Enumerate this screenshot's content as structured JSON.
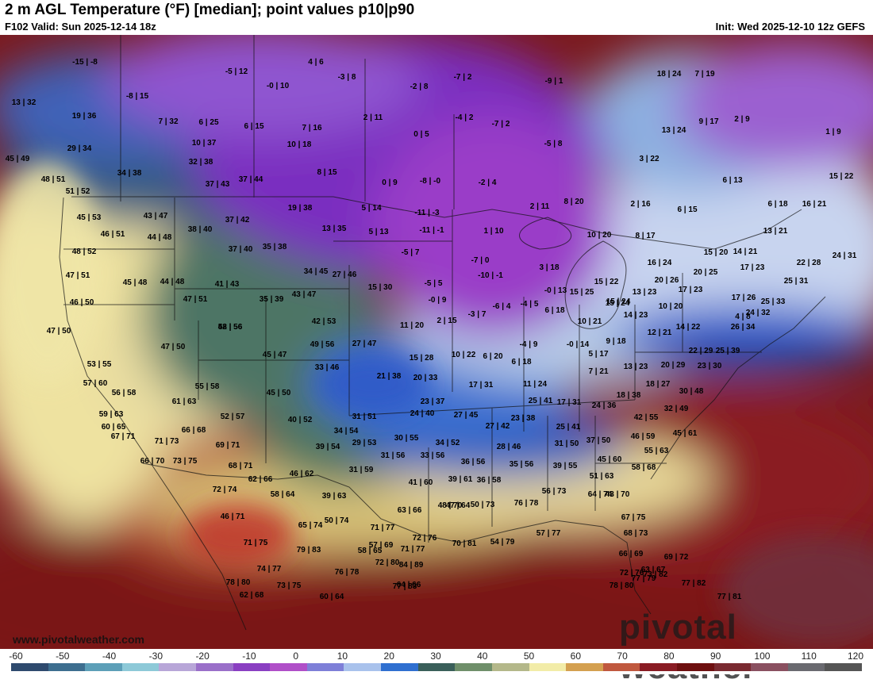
{
  "header": {
    "title": "2 m AGL Temperature (°F) [median]; point values p10|p90",
    "valid": "F102 Valid: Sun 2025-12-14 18z",
    "init": "Init: Wed 2025-12-10 12z GEFS"
  },
  "watermark": {
    "url": "www.pivotalweather.com",
    "logo": "pivotal weather"
  },
  "colorbar": {
    "ticks": [
      "-60",
      "-50",
      "-40",
      "-30",
      "-20",
      "-10",
      "0",
      "10",
      "20",
      "30",
      "40",
      "50",
      "60",
      "70",
      "80",
      "90",
      "100",
      "110",
      "120"
    ],
    "colors": [
      "#2e4a6e",
      "#3d6e8f",
      "#5c9fb8",
      "#8dc9d8",
      "#b8a6d8",
      "#9a6fc9",
      "#8a3fc2",
      "#b04fc8",
      "#7e7fd8",
      "#a9c2ec",
      "#2f6fd0",
      "#3a5f5a",
      "#6f8f6a",
      "#b4b88a",
      "#f2eca8",
      "#d4a050",
      "#c0583e",
      "#8a1c24",
      "#6e1010",
      "#7a2a30",
      "#8a5060",
      "#6a6a70",
      "#555"
    ]
  },
  "points": [
    {
      "v": "-15 | -8",
      "t": "p"
    },
    {
      "v": "-5 | 12",
      "t": "p"
    },
    {
      "v": "4 | 6",
      "t": "p"
    },
    {
      "v": "-3 | 8",
      "t": "p"
    },
    {
      "v": "-0 | 10",
      "t": "p"
    },
    {
      "v": "13 | 32",
      "t": "c"
    },
    {
      "v": "-8 | 15",
      "t": "p"
    },
    {
      "v": "-2 | 8",
      "t": "p"
    },
    {
      "v": "-7 | 2",
      "t": "p"
    },
    {
      "v": "-9 | 1",
      "t": "p"
    },
    {
      "v": "18 | 24",
      "t": "c"
    },
    {
      "v": "7 | 19",
      "t": "c"
    },
    {
      "v": "19 | 36",
      "t": "c"
    },
    {
      "v": "7 | 32",
      "t": "c"
    },
    {
      "v": "6 | 25",
      "t": "c"
    },
    {
      "v": "6 | 15",
      "t": "c"
    },
    {
      "v": "7 | 16",
      "t": "c"
    },
    {
      "v": "2 | 11",
      "t": "p"
    },
    {
      "v": "-4 | 2",
      "t": "p"
    },
    {
      "v": "-7 | 2",
      "t": "p"
    },
    {
      "v": "9 | 17",
      "t": "c"
    },
    {
      "v": "2 | 9",
      "t": "c"
    },
    {
      "v": "13 | 24",
      "t": "c"
    },
    {
      "v": "0 | 5",
      "t": "p"
    },
    {
      "v": "-5 | 8",
      "t": "p"
    },
    {
      "v": "10 | 37",
      "t": "c"
    },
    {
      "v": "10 | 18",
      "t": "c"
    },
    {
      "v": "29 | 34",
      "t": "g"
    },
    {
      "v": "1 | 9",
      "t": "c"
    },
    {
      "v": "45 | 49",
      "t": "y"
    },
    {
      "v": "32 | 38",
      "t": "g"
    },
    {
      "v": "3 | 22",
      "t": "c"
    },
    {
      "v": "34 | 38",
      "t": "g"
    },
    {
      "v": "8 | 15",
      "t": "c"
    },
    {
      "v": "0 | 9",
      "t": "p"
    },
    {
      "v": "-8 | -0",
      "t": "p"
    },
    {
      "v": "-2 | 4",
      "t": "p"
    },
    {
      "v": "6 | 13",
      "t": "c"
    },
    {
      "v": "15 | 22",
      "t": "c"
    },
    {
      "v": "48 | 51",
      "t": "y"
    },
    {
      "v": "37 | 43",
      "t": "g"
    },
    {
      "v": "37 | 44",
      "t": "g"
    },
    {
      "v": "51 | 52",
      "t": "y"
    },
    {
      "v": "8 | 20",
      "t": "c"
    },
    {
      "v": "2 | 16",
      "t": "c"
    },
    {
      "v": "6 | 15",
      "t": "c"
    },
    {
      "v": "6 | 18",
      "t": "c"
    },
    {
      "v": "16 | 21",
      "t": "c"
    },
    {
      "v": "19 | 38",
      "t": "c"
    },
    {
      "v": "5 | 14",
      "t": "c"
    },
    {
      "v": "-11 | -3",
      "t": "p"
    },
    {
      "v": "2 | 11",
      "t": "c"
    },
    {
      "v": "45 | 53",
      "t": "y"
    },
    {
      "v": "43 | 47",
      "t": "g"
    },
    {
      "v": "37 | 42",
      "t": "g"
    },
    {
      "v": "13 | 35",
      "t": "c"
    },
    {
      "v": "5 | 13",
      "t": "c"
    },
    {
      "v": "-11 | -1",
      "t": "p"
    },
    {
      "v": "1 | 10",
      "t": "p"
    },
    {
      "v": "10 | 20",
      "t": "c"
    },
    {
      "v": "8 | 17",
      "t": "c"
    },
    {
      "v": "13 | 21",
      "t": "c"
    },
    {
      "v": "46 | 51",
      "t": "y"
    },
    {
      "v": "44 | 48",
      "t": "g"
    },
    {
      "v": "38 | 40",
      "t": "g"
    },
    {
      "v": "48 | 52",
      "t": "y"
    },
    {
      "v": "37 | 40",
      "t": "g"
    },
    {
      "v": "35 | 38",
      "t": "g"
    },
    {
      "v": "-5 | 7",
      "t": "p"
    },
    {
      "v": "-7 | 0",
      "t": "p"
    },
    {
      "v": "3 | 18",
      "t": "c"
    },
    {
      "v": "16 | 24",
      "t": "c"
    },
    {
      "v": "15 | 20",
      "t": "c"
    },
    {
      "v": "14 | 21",
      "t": "c"
    },
    {
      "v": "24 | 31",
      "t": "c"
    },
    {
      "v": "22 | 28",
      "t": "c"
    },
    {
      "v": "47 | 51",
      "t": "y"
    },
    {
      "v": "34 | 45",
      "t": "g"
    },
    {
      "v": "27 | 46",
      "t": "g"
    },
    {
      "v": "-10 | -1",
      "t": "p"
    },
    {
      "v": "20 | 25",
      "t": "c"
    },
    {
      "v": "17 | 23",
      "t": "c"
    },
    {
      "v": "45 | 48",
      "t": "y"
    },
    {
      "v": "44 | 48",
      "t": "y"
    },
    {
      "v": "41 | 43",
      "t": "g"
    },
    {
      "v": "15 | 30",
      "t": "c"
    },
    {
      "v": "-5 | 5",
      "t": "p"
    },
    {
      "v": "15 | 22",
      "t": "c"
    },
    {
      "v": "20 | 26",
      "t": "c"
    },
    {
      "v": "25 | 31",
      "t": "c"
    },
    {
      "v": "46 | 50",
      "t": "y"
    },
    {
      "v": "47 | 51",
      "t": "y"
    },
    {
      "v": "35 | 39",
      "t": "g"
    },
    {
      "v": "43 | 47",
      "t": "g"
    },
    {
      "v": "-0 | 9",
      "t": "p"
    },
    {
      "v": "-0 | 13",
      "t": "c"
    },
    {
      "v": "15 | 25",
      "t": "c"
    },
    {
      "v": "13 | 23",
      "t": "c"
    },
    {
      "v": "17 | 23",
      "t": "c"
    },
    {
      "v": "17 | 26",
      "t": "c"
    },
    {
      "v": "25 | 33",
      "t": "c"
    },
    {
      "v": "-6 | 4",
      "t": "p"
    },
    {
      "v": "-4 | 5",
      "t": "p"
    },
    {
      "v": "15 | 24",
      "t": "c"
    },
    {
      "v": "10 | 20",
      "t": "c"
    },
    {
      "v": "42 | 53",
      "t": "g"
    },
    {
      "v": "11 | 20",
      "t": "c"
    },
    {
      "v": "2 | 15",
      "t": "c"
    },
    {
      "v": "-3 | 7",
      "t": "p"
    },
    {
      "v": "6 | 18",
      "t": "c"
    },
    {
      "v": "14 | 23",
      "t": "c"
    },
    {
      "v": "15 | 24",
      "t": "c"
    },
    {
      "v": "24 | 32",
      "t": "c"
    },
    {
      "v": "52 | 56",
      "t": "y"
    },
    {
      "v": "48 | 56",
      "t": "y"
    },
    {
      "v": "4 | 8",
      "t": "c"
    },
    {
      "v": "10 | 21",
      "t": "c"
    },
    {
      "v": "14 | 22",
      "t": "c"
    },
    {
      "v": "26 | 34",
      "t": "c"
    },
    {
      "v": "47 | 50",
      "t": "y"
    },
    {
      "v": "47 | 50",
      "t": "y"
    },
    {
      "v": "49 | 56",
      "t": "g"
    },
    {
      "v": "27 | 47",
      "t": "c"
    },
    {
      "v": "-4 | 9",
      "t": "p"
    },
    {
      "v": "-0 | 14",
      "t": "c"
    },
    {
      "v": "12 | 21",
      "t": "c"
    },
    {
      "v": "45 | 47",
      "t": "g"
    },
    {
      "v": "9 | 18",
      "t": "c"
    },
    {
      "v": "10 | 22",
      "t": "c"
    },
    {
      "v": "22 | 29",
      "t": "c"
    },
    {
      "v": "25 | 39",
      "t": "c"
    },
    {
      "v": "53 | 55",
      "t": "y"
    },
    {
      "v": "15 | 28",
      "t": "c"
    },
    {
      "v": "6 | 20",
      "t": "c"
    },
    {
      "v": "6 | 18",
      "t": "c"
    },
    {
      "v": "5 | 17",
      "t": "c"
    },
    {
      "v": "20 | 29",
      "t": "c"
    },
    {
      "v": "23 | 30",
      "t": "c"
    },
    {
      "v": "57 | 60",
      "t": "y"
    },
    {
      "v": "33 | 46",
      "t": "g"
    },
    {
      "v": "21 | 38",
      "t": "c"
    },
    {
      "v": "20 | 33",
      "t": "c"
    },
    {
      "v": "7 | 21",
      "t": "c"
    },
    {
      "v": "13 | 23",
      "t": "c"
    },
    {
      "v": "56 | 58",
      "t": "y"
    },
    {
      "v": "55 | 58",
      "t": "o"
    },
    {
      "v": "17 | 31",
      "t": "c"
    },
    {
      "v": "11 | 24",
      "t": "c"
    },
    {
      "v": "18 | 27",
      "t": "c"
    },
    {
      "v": "25 | 41",
      "t": "c"
    },
    {
      "v": "30 | 48",
      "t": "c"
    },
    {
      "v": "45 | 50",
      "t": "y"
    },
    {
      "v": "61 | 63",
      "t": "o"
    },
    {
      "v": "23 | 37",
      "t": "c"
    },
    {
      "v": "17 | 31",
      "t": "c"
    },
    {
      "v": "18 | 38",
      "t": "c"
    },
    {
      "v": "59 | 63",
      "t": "o"
    },
    {
      "v": "52 | 57",
      "t": "y"
    },
    {
      "v": "31 | 51",
      "t": "g"
    },
    {
      "v": "24 | 40",
      "t": "c"
    },
    {
      "v": "27 | 45",
      "t": "c"
    },
    {
      "v": "24 | 36",
      "t": "c"
    },
    {
      "v": "32 | 49",
      "t": "c"
    },
    {
      "v": "60 | 65",
      "t": "o"
    },
    {
      "v": "40 | 52",
      "t": "g"
    },
    {
      "v": "23 | 38",
      "t": "c"
    },
    {
      "v": "42 | 55",
      "t": "y"
    },
    {
      "v": "66 | 68",
      "t": "o"
    },
    {
      "v": "34 | 54",
      "t": "g"
    },
    {
      "v": "27 | 42",
      "t": "c"
    },
    {
      "v": "25 | 41",
      "t": "c"
    },
    {
      "v": "45 | 61",
      "t": "y"
    },
    {
      "v": "67 | 71",
      "t": "o"
    },
    {
      "v": "71 | 73",
      "t": "o"
    },
    {
      "v": "30 | 55",
      "t": "g"
    },
    {
      "v": "34 | 52",
      "t": "g"
    },
    {
      "v": "46 | 59",
      "t": "y"
    },
    {
      "v": "69 | 71",
      "t": "o"
    },
    {
      "v": "39 | 54",
      "t": "g"
    },
    {
      "v": "29 | 53",
      "t": "g"
    },
    {
      "v": "28 | 46",
      "t": "g"
    },
    {
      "v": "31 | 50",
      "t": "g"
    },
    {
      "v": "37 | 50",
      "t": "g"
    },
    {
      "v": "55 | 63",
      "t": "y"
    },
    {
      "v": "66 | 70",
      "t": "o"
    },
    {
      "v": "73 | 75",
      "t": "o"
    },
    {
      "v": "68 | 71",
      "t": "o"
    },
    {
      "v": "31 | 56",
      "t": "g"
    },
    {
      "v": "33 | 56",
      "t": "g"
    },
    {
      "v": "36 | 56",
      "t": "g"
    },
    {
      "v": "35 | 56",
      "t": "g"
    },
    {
      "v": "39 | 55",
      "t": "g"
    },
    {
      "v": "45 | 60",
      "t": "y"
    },
    {
      "v": "58 | 68",
      "t": "o"
    },
    {
      "v": "31 | 59",
      "t": "g"
    },
    {
      "v": "46 | 62",
      "t": "y"
    },
    {
      "v": "62 | 66",
      "t": "o"
    },
    {
      "v": "39 | 61",
      "t": "g"
    },
    {
      "v": "36 | 58",
      "t": "g"
    },
    {
      "v": "51 | 63",
      "t": "y"
    },
    {
      "v": "72 | 74",
      "t": "o"
    },
    {
      "v": "58 | 64",
      "t": "o"
    },
    {
      "v": "41 | 60",
      "t": "g"
    },
    {
      "v": "39 | 63",
      "t": "y"
    },
    {
      "v": "47 | 64",
      "t": "y"
    },
    {
      "v": "56 | 73",
      "t": "o"
    },
    {
      "v": "64 | 74",
      "t": "o"
    },
    {
      "v": "43 | 70",
      "t": "g"
    },
    {
      "v": "50 | 73",
      "t": "y"
    },
    {
      "v": "48 | 70",
      "t": "y"
    },
    {
      "v": "76 | 78",
      "t": "o"
    },
    {
      "v": "46 | 71",
      "t": "y"
    },
    {
      "v": "63 | 66",
      "t": "o"
    },
    {
      "v": "50 | 74",
      "t": "y"
    },
    {
      "v": "71 | 77",
      "t": "o"
    },
    {
      "v": "67 | 75",
      "t": "o"
    },
    {
      "v": "65 | 74",
      "t": "o"
    },
    {
      "v": "68 | 73",
      "t": "o"
    },
    {
      "v": "70 | 81",
      "t": "o"
    },
    {
      "v": "54 | 79",
      "t": "y"
    },
    {
      "v": "57 | 77",
      "t": "o"
    },
    {
      "v": "71 | 75",
      "t": "o"
    },
    {
      "v": "71 | 77",
      "t": "o"
    },
    {
      "v": "66 | 69",
      "t": "o"
    },
    {
      "v": "57 | 69",
      "t": "o"
    },
    {
      "v": "72 | 76",
      "t": "o"
    },
    {
      "v": "72 | 76",
      "t": "o"
    },
    {
      "v": "79 | 83",
      "t": "o"
    },
    {
      "v": "58 | 65",
      "t": "o"
    },
    {
      "v": "73 | 82",
      "t": "o"
    },
    {
      "v": "69 | 72",
      "t": "o"
    },
    {
      "v": "74 | 77",
      "t": "o"
    },
    {
      "v": "72 | 80",
      "t": "o"
    },
    {
      "v": "84 | 89",
      "t": "o"
    },
    {
      "v": "77 | 83",
      "t": "o"
    },
    {
      "v": "76 | 78",
      "t": "o"
    },
    {
      "v": "78 | 80",
      "t": "o"
    },
    {
      "v": "63 | 67",
      "t": "o"
    },
    {
      "v": "78 | 80",
      "t": "o"
    },
    {
      "v": "62 | 68",
      "t": "o"
    },
    {
      "v": "73 | 75",
      "t": "o"
    },
    {
      "v": "64 | 66",
      "t": "o"
    },
    {
      "v": "77 | 79",
      "t": "o"
    },
    {
      "v": "77 | 82",
      "t": "o"
    },
    {
      "v": "77 | 81",
      "t": "o"
    },
    {
      "v": "60 | 64",
      "t": "o"
    }
  ]
}
